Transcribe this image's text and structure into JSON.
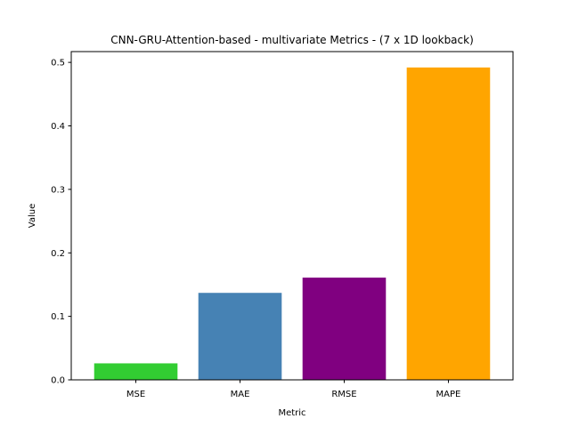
{
  "chart_data": {
    "type": "bar",
    "title": "CNN-GRU-Attention-based - multivariate Metrics - (7 x 1D lookback)",
    "xlabel": "Metric",
    "ylabel": "Value",
    "categories": [
      "MSE",
      "MAE",
      "RMSE",
      "MAPE"
    ],
    "values": [
      0.026,
      0.137,
      0.161,
      0.492
    ],
    "colors": [
      "#32cd32",
      "#4682b4",
      "#800080",
      "#ffa500"
    ],
    "ylim": [
      0,
      0.517
    ],
    "yticks": [
      0.0,
      0.1,
      0.2,
      0.3,
      0.4,
      0.5
    ],
    "ytick_labels": [
      "0.0",
      "0.1",
      "0.2",
      "0.3",
      "0.4",
      "0.5"
    ],
    "grid": false,
    "legend": "none"
  }
}
